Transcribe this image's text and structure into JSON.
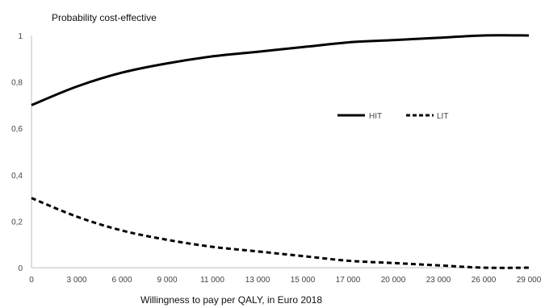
{
  "chart_data": {
    "type": "line",
    "ylabel": "Probability cost-effective",
    "xlabel": "Willingness to pay per QALY, in Euro 2018",
    "x": [
      "0",
      "3 000",
      "6 000",
      "9 000",
      "11 000",
      "13 000",
      "15 000",
      "17 000",
      "20 000",
      "23 000",
      "26 000",
      "29 000"
    ],
    "y_ticks": [
      "0",
      "0,2",
      "0,4",
      "0,6",
      "0,8",
      "1"
    ],
    "ylim": [
      0,
      1
    ],
    "grid": false,
    "legend_position": "center-right",
    "series": [
      {
        "name": "HIT",
        "style": "solid",
        "color": "#000000",
        "values": [
          0.7,
          0.78,
          0.84,
          0.88,
          0.91,
          0.93,
          0.95,
          0.97,
          0.98,
          0.99,
          1.0,
          1.0
        ]
      },
      {
        "name": "LIT",
        "style": "dashed",
        "color": "#000000",
        "values": [
          0.3,
          0.22,
          0.16,
          0.12,
          0.09,
          0.07,
          0.05,
          0.03,
          0.02,
          0.01,
          0.0,
          0.0
        ]
      }
    ]
  }
}
